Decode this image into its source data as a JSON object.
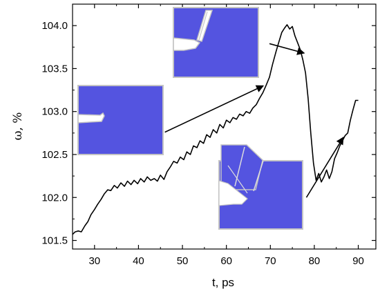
{
  "chart_data": {
    "type": "line",
    "xlabel": "t, ps",
    "ylabel": "ω, %",
    "xlim": [
      25,
      94
    ],
    "ylim": [
      101.4,
      104.25
    ],
    "xticks": [
      30,
      40,
      50,
      60,
      70,
      80,
      90
    ],
    "yticks": [
      101.5,
      102.0,
      102.5,
      103.0,
      103.5,
      104.0
    ],
    "xtick_labels": [
      "30",
      "40",
      "50",
      "60",
      "70",
      "80",
      "90"
    ],
    "ytick_labels": [
      "101.5",
      "102.0",
      "102.5",
      "103.0",
      "103.5",
      "104.0"
    ],
    "grid": false,
    "line_color": "#000000",
    "series": [
      {
        "x": [
          25.0,
          25.6,
          26.3,
          27.0,
          27.8,
          28.5,
          29.2,
          30.0,
          30.7,
          31.5,
          32.2,
          33.0,
          33.7,
          34.5,
          35.2,
          36.0,
          36.8,
          37.5,
          38.3,
          39.0,
          39.8,
          40.5,
          41.3,
          42.0,
          42.8,
          43.6,
          44.3,
          45.0,
          45.8,
          46.5,
          47.3,
          48.0,
          48.8,
          49.5,
          50.3,
          51.0,
          51.8,
          52.5,
          53.3,
          54.0,
          54.8,
          55.5,
          56.3,
          57.0,
          57.8,
          58.5,
          59.3,
          60.0,
          60.8,
          61.5,
          62.3,
          63.0,
          63.8,
          64.5,
          65.3,
          66.0,
          66.8,
          67.5,
          68.3,
          69.0,
          69.8,
          70.5,
          71.3,
          72.0,
          72.6,
          73.2,
          73.8,
          74.4,
          75.0,
          75.6,
          76.2,
          76.8,
          77.4,
          78.0,
          78.6,
          79.2,
          79.8,
          80.4,
          81.0,
          81.6,
          82.2,
          82.8,
          83.4,
          84.0,
          84.6,
          85.2,
          85.8,
          86.4,
          87.0,
          87.6,
          88.2,
          88.8,
          89.4,
          90.0
        ],
        "values": [
          101.57,
          101.6,
          101.61,
          101.6,
          101.67,
          101.72,
          101.8,
          101.86,
          101.92,
          101.98,
          102.04,
          102.09,
          102.08,
          102.14,
          102.11,
          102.17,
          102.13,
          102.19,
          102.15,
          102.2,
          102.16,
          102.22,
          102.18,
          102.24,
          102.2,
          102.22,
          102.19,
          102.26,
          102.21,
          102.3,
          102.36,
          102.42,
          102.4,
          102.47,
          102.44,
          102.53,
          102.5,
          102.6,
          102.58,
          102.66,
          102.63,
          102.73,
          102.7,
          102.79,
          102.75,
          102.85,
          102.81,
          102.9,
          102.87,
          102.93,
          102.91,
          102.97,
          102.95,
          103.0,
          102.98,
          103.04,
          103.08,
          103.15,
          103.22,
          103.3,
          103.4,
          103.55,
          103.7,
          103.82,
          103.92,
          103.97,
          104.01,
          103.96,
          103.99,
          103.88,
          103.8,
          103.72,
          103.6,
          103.45,
          103.15,
          102.75,
          102.4,
          102.2,
          102.28,
          102.18,
          102.24,
          102.32,
          102.22,
          102.3,
          102.45,
          102.52,
          102.6,
          102.66,
          102.72,
          102.75,
          102.9,
          103.02,
          103.13,
          103.13
        ]
      }
    ],
    "annotations": [
      {
        "kind": "arrow",
        "from": [
          46.0,
          102.76
        ],
        "to": [
          68.4,
          103.3
        ]
      },
      {
        "kind": "arrow",
        "from": [
          69.8,
          103.79
        ],
        "to": [
          77.7,
          103.68
        ]
      },
      {
        "kind": "arrow",
        "from": [
          78.2,
          102.0
        ],
        "to": [
          86.6,
          102.7
        ]
      }
    ],
    "insets": [
      {
        "name": "crack-stage-1",
        "fill": "#5454e0",
        "border": "#c4c4c4"
      },
      {
        "name": "crack-stage-2",
        "fill": "#5454e0",
        "border": "#c4c4c4"
      },
      {
        "name": "crack-stage-3",
        "fill": "#5454e0",
        "border": "#c4c4c4"
      }
    ]
  }
}
